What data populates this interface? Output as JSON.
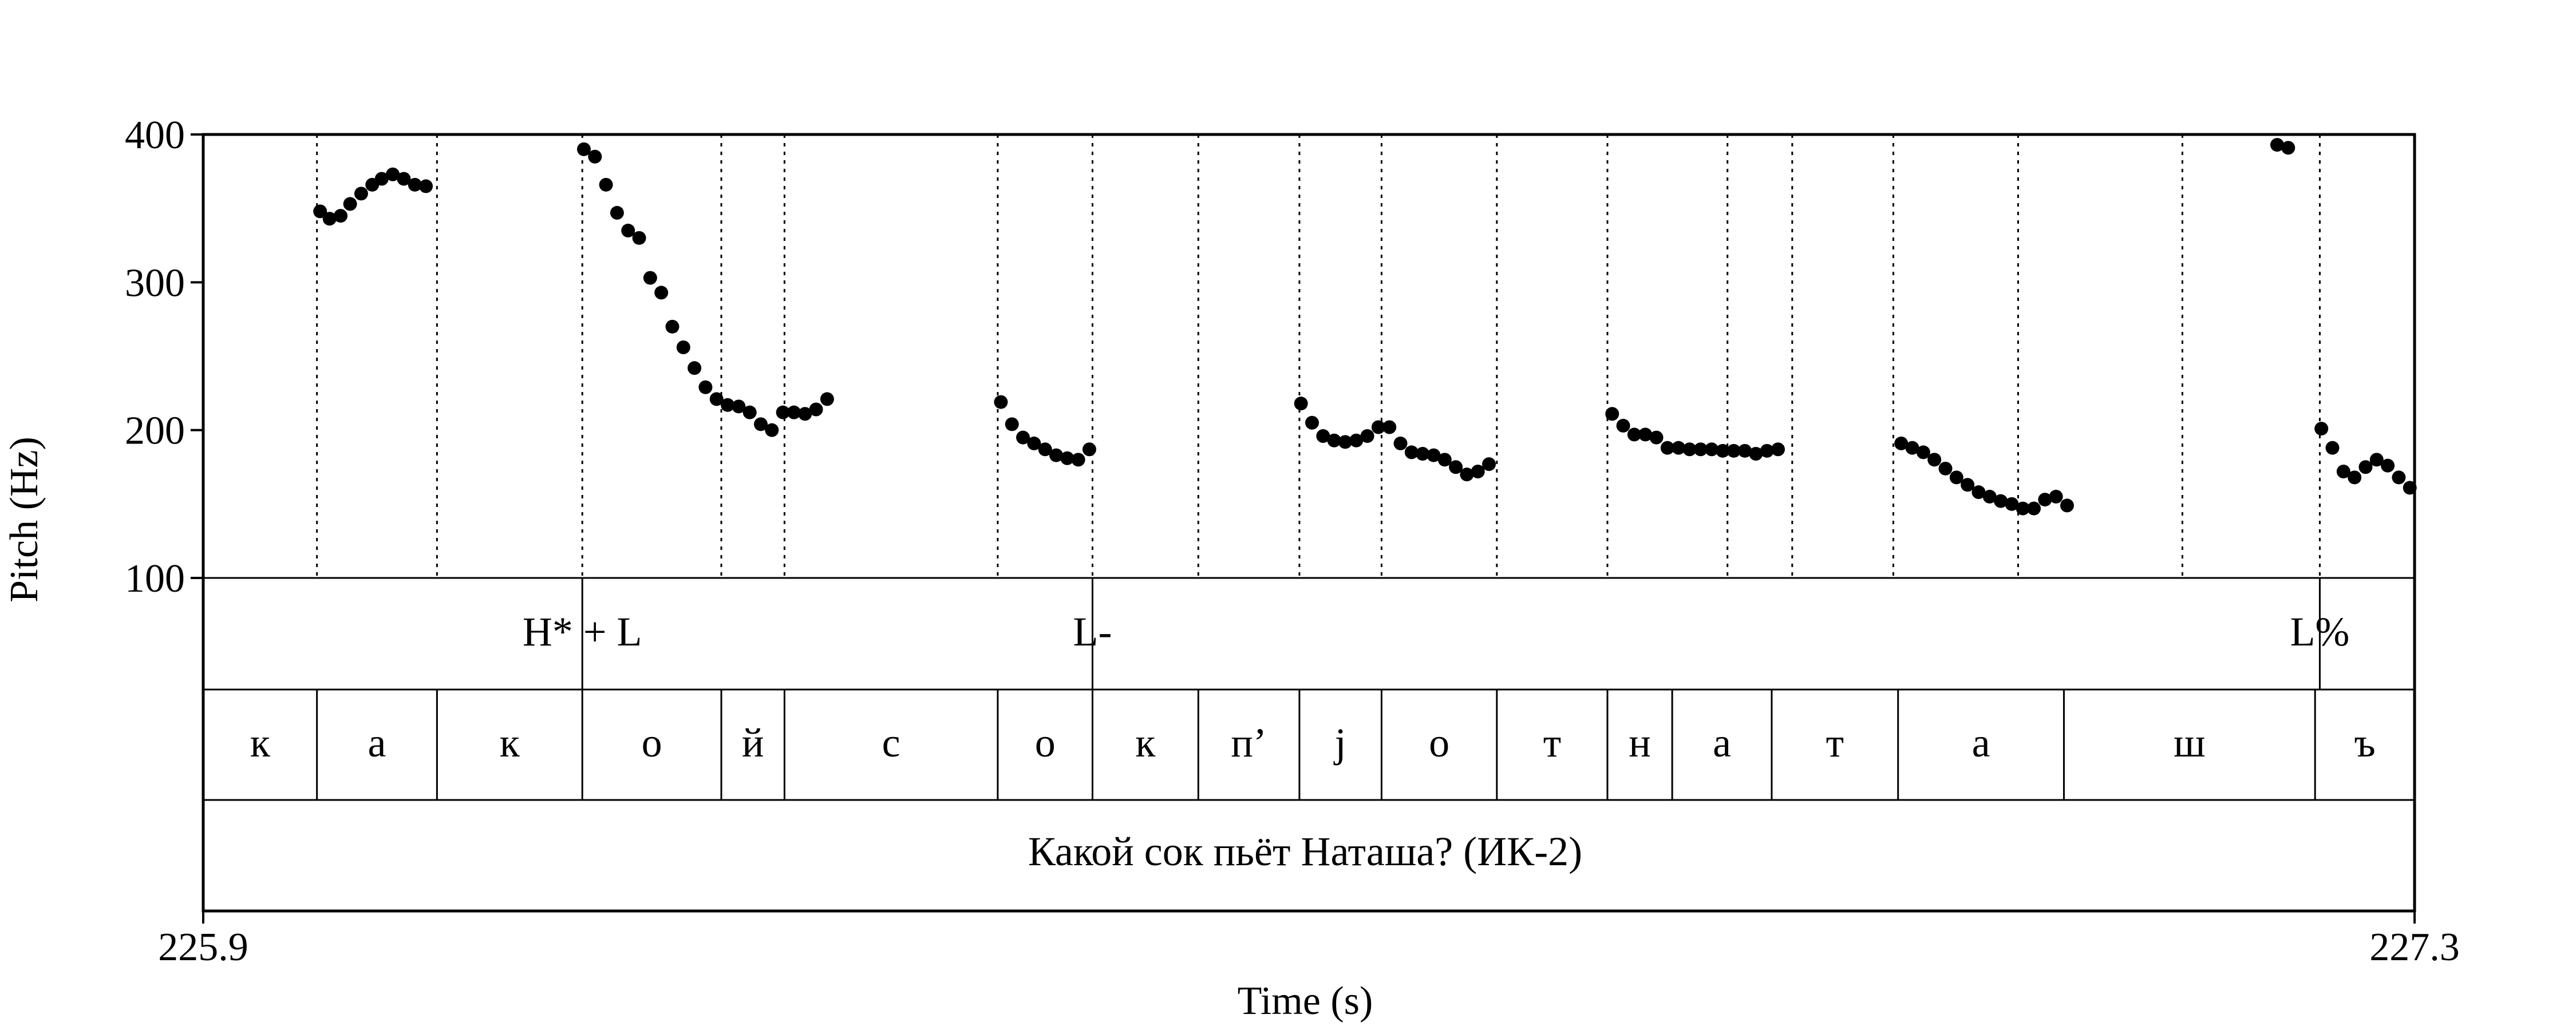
{
  "chart_data": {
    "type": "scatter",
    "title": "",
    "xlabel": "Time (s)",
    "ylabel": "Pitch (Hz)",
    "xlim": [
      225.9,
      227.3
    ],
    "ylim": [
      100,
      400
    ],
    "x_tick_labels": [
      "225.9",
      "227.3"
    ],
    "y_ticks": [
      100,
      200,
      300,
      400
    ],
    "grid": false,
    "legend": "none",
    "point_color": "#000000",
    "boundaries": [
      225.972,
      226.048,
      226.14,
      226.228,
      226.268,
      226.403,
      226.463,
      226.53,
      226.594,
      226.646,
      226.719,
      226.789,
      226.865,
      226.906,
      226.97,
      227.049,
      227.153,
      227.24
    ],
    "tones": [
      {
        "time": 226.14,
        "label": "H* + L"
      },
      {
        "time": 226.463,
        "label": "L-"
      },
      {
        "time": 227.24,
        "label": "L%"
      }
    ],
    "segments": [
      {
        "label": "к",
        "start": 225.9,
        "end": 225.972
      },
      {
        "label": "а",
        "start": 225.972,
        "end": 226.048
      },
      {
        "label": "к",
        "start": 226.048,
        "end": 226.14
      },
      {
        "label": "о",
        "start": 226.14,
        "end": 226.228
      },
      {
        "label": "й",
        "start": 226.228,
        "end": 226.268
      },
      {
        "label": "с",
        "start": 226.268,
        "end": 226.403
      },
      {
        "label": "о",
        "start": 226.403,
        "end": 226.463
      },
      {
        "label": "к",
        "start": 226.463,
        "end": 226.53
      },
      {
        "label": "п’",
        "start": 226.53,
        "end": 226.594
      },
      {
        "label": "j",
        "start": 226.594,
        "end": 226.646
      },
      {
        "label": "о",
        "start": 226.646,
        "end": 226.719
      },
      {
        "label": "т",
        "start": 226.719,
        "end": 226.789
      },
      {
        "label": "н",
        "start": 226.789,
        "end": 226.83
      },
      {
        "label": "а",
        "start": 226.83,
        "end": 226.893
      },
      {
        "label": "т",
        "start": 226.893,
        "end": 226.973
      },
      {
        "label": "а",
        "start": 226.973,
        "end": 227.078
      },
      {
        "label": "ш",
        "start": 227.078,
        "end": 227.237
      },
      {
        "label": "ъ",
        "start": 227.237,
        "end": 227.3
      }
    ],
    "sentence": "Какой сок пьёт Наташа? (ИК-2)",
    "points": [
      [
        225.974,
        348
      ],
      [
        225.98,
        343
      ],
      [
        225.987,
        345
      ],
      [
        225.993,
        353
      ],
      [
        226.0,
        360
      ],
      [
        226.007,
        366
      ],
      [
        226.013,
        370
      ],
      [
        226.02,
        373
      ],
      [
        226.027,
        370
      ],
      [
        226.034,
        366
      ],
      [
        226.041,
        365
      ],
      [
        226.141,
        390
      ],
      [
        226.148,
        385
      ],
      [
        226.155,
        366
      ],
      [
        226.162,
        347
      ],
      [
        226.169,
        335
      ],
      [
        226.176,
        330
      ],
      [
        226.183,
        303
      ],
      [
        226.19,
        293
      ],
      [
        226.197,
        270
      ],
      [
        226.204,
        256
      ],
      [
        226.211,
        242
      ],
      [
        226.218,
        229
      ],
      [
        226.225,
        221
      ],
      [
        226.232,
        217
      ],
      [
        226.239,
        216
      ],
      [
        226.246,
        212
      ],
      [
        226.253,
        204
      ],
      [
        226.26,
        200
      ],
      [
        226.267,
        212
      ],
      [
        226.274,
        212
      ],
      [
        226.281,
        211
      ],
      [
        226.288,
        214
      ],
      [
        226.295,
        221
      ],
      [
        226.405,
        219
      ],
      [
        226.412,
        204
      ],
      [
        226.419,
        195
      ],
      [
        226.426,
        191
      ],
      [
        226.433,
        187
      ],
      [
        226.44,
        183
      ],
      [
        226.447,
        181
      ],
      [
        226.454,
        180
      ],
      [
        226.461,
        187
      ],
      [
        226.595,
        218
      ],
      [
        226.602,
        205
      ],
      [
        226.609,
        196
      ],
      [
        226.616,
        193
      ],
      [
        226.623,
        192
      ],
      [
        226.63,
        193
      ],
      [
        226.637,
        196
      ],
      [
        226.644,
        202
      ],
      [
        226.651,
        202
      ],
      [
        226.658,
        191
      ],
      [
        226.665,
        185
      ],
      [
        226.672,
        184
      ],
      [
        226.679,
        183
      ],
      [
        226.686,
        180
      ],
      [
        226.693,
        175
      ],
      [
        226.7,
        170
      ],
      [
        226.707,
        172
      ],
      [
        226.714,
        177
      ],
      [
        226.792,
        211
      ],
      [
        226.799,
        203
      ],
      [
        226.806,
        197
      ],
      [
        226.813,
        197
      ],
      [
        226.82,
        195
      ],
      [
        226.827,
        188
      ],
      [
        226.834,
        188
      ],
      [
        226.841,
        187
      ],
      [
        226.848,
        187
      ],
      [
        226.855,
        187
      ],
      [
        226.862,
        186
      ],
      [
        226.869,
        186
      ],
      [
        226.876,
        186
      ],
      [
        226.883,
        184
      ],
      [
        226.89,
        186
      ],
      [
        226.897,
        187
      ],
      [
        226.975,
        191
      ],
      [
        226.982,
        188
      ],
      [
        226.989,
        185
      ],
      [
        226.996,
        180
      ],
      [
        227.003,
        174
      ],
      [
        227.01,
        168
      ],
      [
        227.017,
        163
      ],
      [
        227.024,
        158
      ],
      [
        227.031,
        155
      ],
      [
        227.038,
        152
      ],
      [
        227.045,
        150
      ],
      [
        227.052,
        147
      ],
      [
        227.059,
        147
      ],
      [
        227.066,
        153
      ],
      [
        227.073,
        155
      ],
      [
        227.08,
        149
      ],
      [
        227.213,
        393
      ],
      [
        227.22,
        391
      ],
      [
        227.241,
        201
      ],
      [
        227.248,
        188
      ],
      [
        227.255,
        172
      ],
      [
        227.262,
        168
      ],
      [
        227.269,
        175
      ],
      [
        227.276,
        180
      ],
      [
        227.283,
        176
      ],
      [
        227.29,
        168
      ],
      [
        227.297,
        161
      ]
    ]
  }
}
